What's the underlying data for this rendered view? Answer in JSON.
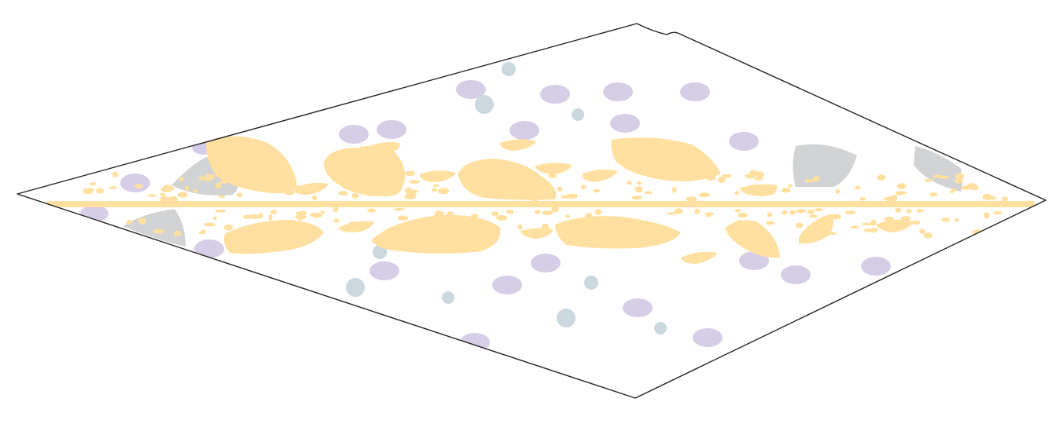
{
  "palette": {
    "background": "#ffffff",
    "outline": "#222222",
    "band": "#ffe0a0",
    "lavender": "#d6cde6",
    "steel": "#cbd8e0",
    "gray": "#d2d3d4"
  }
}
